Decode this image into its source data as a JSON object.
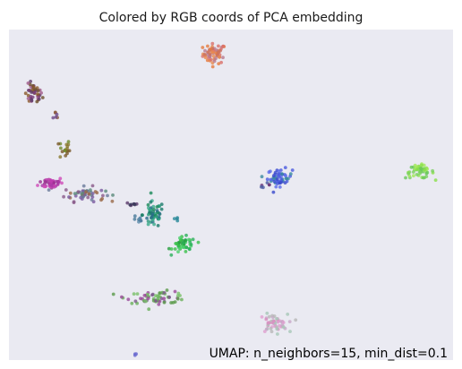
{
  "chart_data": {
    "type": "scatter",
    "title": "Colored by RGB coords of PCA embedding",
    "annotation": "UMAP: n_neighbors=15, min_dist=0.1",
    "xlabel": "",
    "ylabel": "",
    "xlim": [
      0,
      100
    ],
    "ylim": [
      0,
      100
    ],
    "grid": false,
    "axes_ticks": false,
    "background": "#eaeaf2",
    "clusters": [
      {
        "id": "c1",
        "x": 46.3,
        "y": 92.7,
        "n": 60,
        "sx": 1.3,
        "sy": 1.5,
        "colors": [
          "#d9706a",
          "#e98a4f",
          "#c9705f",
          "#e57a3e",
          "#b97a8e"
        ]
      },
      {
        "id": "c2",
        "x": 5.5,
        "y": 80.3,
        "n": 45,
        "sx": 1.0,
        "sy": 1.6,
        "colors": [
          "#7a3e7a",
          "#8b5a2b",
          "#5e3c6a",
          "#a05a8a",
          "#6b4f2a"
        ]
      },
      {
        "id": "c3",
        "x": 10.7,
        "y": 74.5,
        "n": 6,
        "sx": 0.4,
        "sy": 0.8,
        "colors": [
          "#8b5a3b",
          "#6d4a8a"
        ]
      },
      {
        "id": "c4",
        "x": 12.5,
        "y": 63.7,
        "n": 18,
        "sx": 0.6,
        "sy": 1.6,
        "colors": [
          "#6e8a2a",
          "#8a7a30",
          "#7a5a2a"
        ]
      },
      {
        "id": "c5",
        "x": 9.5,
        "y": 53.6,
        "n": 45,
        "sx": 1.4,
        "sy": 0.9,
        "colors": [
          "#c03cb0",
          "#a93aa6",
          "#d04ab8",
          "#9a3090"
        ]
      },
      {
        "id": "c6",
        "x": 17.0,
        "y": 50.2,
        "n": 55,
        "sx": 2.3,
        "sy": 1.1,
        "colors": [
          "#8a5a8a",
          "#6a7a9a",
          "#9a6a4a",
          "#7a5aa0",
          "#5a8a7a"
        ]
      },
      {
        "id": "c7",
        "x": 61.0,
        "y": 55.2,
        "n": 55,
        "sx": 1.4,
        "sy": 1.3,
        "colors": [
          "#4a5adf",
          "#3a4acc",
          "#5a6aea",
          "#3a8aa0"
        ]
      },
      {
        "id": "c8",
        "x": 57.5,
        "y": 53.0,
        "n": 6,
        "sx": 0.7,
        "sy": 0.3,
        "colors": [
          "#6a3a7a",
          "#4a5aa0"
        ]
      },
      {
        "id": "c9",
        "x": 92.5,
        "y": 57.0,
        "n": 50,
        "sx": 1.6,
        "sy": 1.0,
        "colors": [
          "#8ae04a",
          "#7ad060",
          "#a0e858",
          "#6ac85a"
        ]
      },
      {
        "id": "c10",
        "x": 27.8,
        "y": 47.2,
        "n": 8,
        "sx": 0.8,
        "sy": 0.4,
        "colors": [
          "#5a3a6a",
          "#3a3a5a"
        ]
      },
      {
        "id": "c11",
        "x": 32.5,
        "y": 44.0,
        "n": 55,
        "sx": 1.2,
        "sy": 2.0,
        "colors": [
          "#2a9a7a",
          "#1a7a6a",
          "#3aaa8a",
          "#2a6a8a",
          "#1a8a5a"
        ]
      },
      {
        "id": "c12",
        "x": 29.2,
        "y": 42.4,
        "n": 8,
        "sx": 0.6,
        "sy": 0.8,
        "colors": [
          "#5a8aaa",
          "#4a7a9a"
        ]
      },
      {
        "id": "c13",
        "x": 37.5,
        "y": 42.6,
        "n": 4,
        "sx": 0.3,
        "sy": 0.3,
        "colors": [
          "#2a8a9a"
        ]
      },
      {
        "id": "c14",
        "x": 39.5,
        "y": 34.8,
        "n": 50,
        "sx": 1.3,
        "sy": 1.2,
        "colors": [
          "#3ac04a",
          "#2ab05a",
          "#4ad06a",
          "#28a040"
        ]
      },
      {
        "id": "c15",
        "x": 33.5,
        "y": 19.0,
        "n": 65,
        "sx": 3.5,
        "sy": 0.9,
        "colors": [
          "#5a9a4a",
          "#7a5a8a",
          "#6ab05a",
          "#9a4a9a",
          "#7ac06a"
        ]
      },
      {
        "id": "c16",
        "x": 59.5,
        "y": 11.0,
        "n": 55,
        "sx": 1.6,
        "sy": 1.4,
        "colors": [
          "#c8a8c8",
          "#a8c8b8",
          "#d890c0",
          "#b8b8b8",
          "#e0a0d0"
        ]
      },
      {
        "id": "c17",
        "x": 28.5,
        "y": 1.5,
        "n": 3,
        "sx": 0.3,
        "sy": 0.2,
        "colors": [
          "#6a6ad0"
        ]
      }
    ]
  }
}
